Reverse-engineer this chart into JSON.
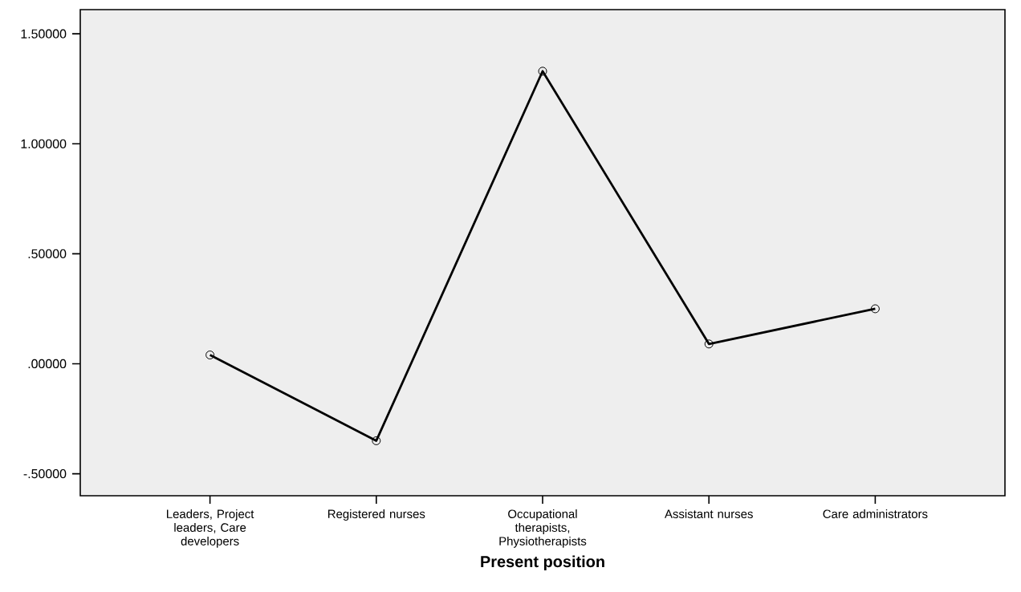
{
  "chart_data": {
    "type": "line",
    "xlabel": "Present position",
    "categories": [
      "Leaders, Project leaders, Care developers",
      "Registered nurses",
      "Occupational therapists, Physiotherapists",
      "Assistant nurses",
      "Care administrators"
    ],
    "values": [
      0.04,
      -0.35,
      1.33,
      0.09,
      0.25
    ],
    "color": "#000000",
    "marker": "circle",
    "line_style": "solid",
    "grid": false,
    "ylim": [
      -0.6,
      1.61
    ],
    "yticks": [
      {
        "value": -0.5,
        "label": "-.50000"
      },
      {
        "value": 0,
        "label": ".00000"
      },
      {
        "value": 0.5,
        "label": ".50000"
      },
      {
        "value": 1.0,
        "label": "1.00000"
      },
      {
        "value": 1.5,
        "label": "1.50000"
      }
    ]
  }
}
